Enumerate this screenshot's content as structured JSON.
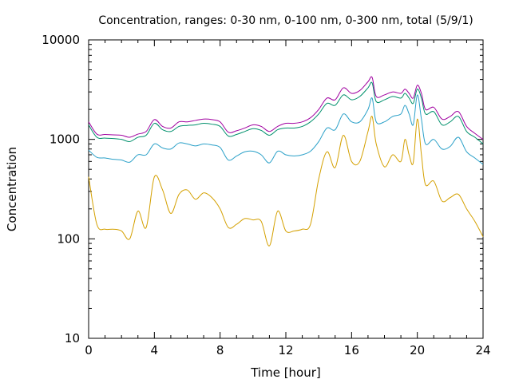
{
  "chart_data": {
    "type": "line",
    "title": "Concentration, ranges: 0-30 nm, 0-100 nm, 0-300 nm, total (5/9/1)",
    "xlabel": "Time [hour]",
    "ylabel": "Concentration",
    "xlim": [
      0,
      24
    ],
    "ylim": [
      10,
      10000
    ],
    "y_scale": "log",
    "grid": false,
    "legend": "none",
    "x_ticks": [
      "0",
      "4",
      "8",
      "12",
      "16",
      "20",
      "24"
    ],
    "y_ticks": [
      "10",
      "100",
      "1000",
      "10000"
    ],
    "x": [
      0,
      0.5,
      1,
      1.5,
      2,
      2.5,
      3,
      3.5,
      4,
      4.5,
      5,
      5.5,
      6,
      6.5,
      7,
      7.5,
      8,
      8.5,
      9,
      9.5,
      10,
      10.5,
      11,
      11.5,
      12,
      12.5,
      13,
      13.5,
      14,
      14.5,
      15,
      15.5,
      16,
      16.5,
      17,
      17.25,
      17.5,
      18,
      18.5,
      19,
      19.25,
      19.5,
      19.75,
      20,
      20.25,
      20.5,
      21,
      21.5,
      22,
      22.5,
      23,
      23.5,
      24
    ],
    "series": [
      {
        "color": "#d4a000",
        "values": [
          420,
          140,
          125,
          125,
          120,
          100,
          190,
          130,
          420,
          310,
          180,
          280,
          310,
          250,
          290,
          260,
          200,
          130,
          140,
          160,
          155,
          150,
          85,
          190,
          120,
          120,
          125,
          140,
          400,
          750,
          520,
          1100,
          600,
          600,
          1200,
          1700,
          900,
          530,
          700,
          600,
          1000,
          700,
          580,
          1600,
          700,
          350,
          380,
          240,
          260,
          280,
          200,
          150,
          105
        ]
      },
      {
        "color": "#2aa0c8",
        "values": [
          780,
          660,
          650,
          630,
          620,
          590,
          700,
          700,
          900,
          820,
          800,
          920,
          900,
          860,
          900,
          880,
          830,
          620,
          680,
          750,
          760,
          700,
          580,
          760,
          700,
          680,
          700,
          760,
          950,
          1300,
          1250,
          1800,
          1500,
          1500,
          2000,
          2600,
          1500,
          1500,
          1700,
          1800,
          2200,
          1800,
          1400,
          2800,
          1600,
          900,
          1000,
          800,
          850,
          1050,
          750,
          650,
          560
        ]
      },
      {
        "color": "#00906c",
        "values": [
          1400,
          1050,
          1030,
          1020,
          1000,
          950,
          1050,
          1100,
          1450,
          1250,
          1200,
          1350,
          1380,
          1400,
          1450,
          1420,
          1350,
          1080,
          1120,
          1200,
          1280,
          1230,
          1100,
          1250,
          1300,
          1300,
          1350,
          1500,
          1800,
          2300,
          2200,
          2800,
          2500,
          2700,
          3300,
          3700,
          2400,
          2500,
          2700,
          2600,
          2900,
          2600,
          2300,
          3200,
          2600,
          1800,
          1900,
          1400,
          1500,
          1700,
          1200,
          1050,
          900
        ]
      },
      {
        "color": "#a000a0",
        "values": [
          1500,
          1130,
          1120,
          1110,
          1100,
          1050,
          1130,
          1200,
          1580,
          1350,
          1300,
          1500,
          1500,
          1550,
          1600,
          1580,
          1500,
          1180,
          1220,
          1300,
          1400,
          1350,
          1200,
          1350,
          1450,
          1450,
          1500,
          1650,
          2000,
          2600,
          2500,
          3300,
          2900,
          3100,
          3800,
          4200,
          2700,
          2800,
          3000,
          2900,
          3200,
          2900,
          2600,
          3500,
          2900,
          2000,
          2100,
          1600,
          1700,
          1900,
          1350,
          1150,
          1000
        ]
      }
    ]
  }
}
